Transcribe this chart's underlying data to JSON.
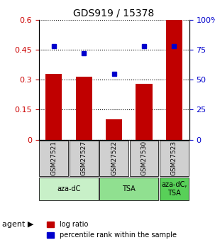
{
  "title": "GDS919 / 15378",
  "samples": [
    "GSM27521",
    "GSM27527",
    "GSM27522",
    "GSM27530",
    "GSM27523"
  ],
  "log_ratio": [
    0.33,
    0.315,
    0.1,
    0.28,
    0.6
  ],
  "percentile": [
    78,
    72,
    55,
    78,
    78
  ],
  "bar_color": "#c00000",
  "dot_color": "#0000cc",
  "ylim_left": [
    0,
    0.6
  ],
  "ylim_right": [
    0,
    100
  ],
  "yticks_left": [
    0,
    0.15,
    0.3,
    0.45,
    0.6
  ],
  "yticks_right": [
    0,
    25,
    50,
    75,
    100
  ],
  "ytick_labels_left": [
    "0",
    "0.15",
    "0.3",
    "0.45",
    "0.6"
  ],
  "ytick_labels_right": [
    "0",
    "25",
    "50",
    "75",
    "100%"
  ],
  "groups": [
    {
      "label": "aza-dC",
      "samples": [
        "GSM27521",
        "GSM27527"
      ],
      "color": "#c8f0c8"
    },
    {
      "label": "TSA",
      "samples": [
        "GSM27522",
        "GSM27530"
      ],
      "color": "#90e090"
    },
    {
      "label": "aza-dC,\nTSA",
      "samples": [
        "GSM27523"
      ],
      "color": "#58d058"
    }
  ],
  "agent_label": "agent",
  "legend_bar_label": "log ratio",
  "legend_dot_label": "percentile rank within the sample",
  "background_color": "#ffffff",
  "plot_bg_color": "#ffffff",
  "grid_color": "#000000",
  "bar_width": 0.55,
  "sample_bg_color": "#d0d0d0"
}
